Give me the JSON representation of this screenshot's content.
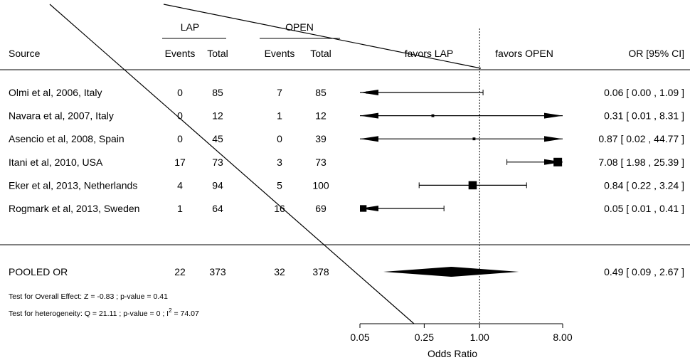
{
  "chart_data": {
    "type": "forest",
    "xlabel": "Odds Ratio",
    "x_scale": "log",
    "xlim": [
      0.05,
      8.0
    ],
    "x_ticks": [
      "0.05",
      "0.25",
      "1.00",
      "8.00"
    ],
    "null_line": 1.0,
    "favors_left": "favors LAP",
    "favors_right": "favors OPEN",
    "headers": {
      "source": "Source",
      "group1": "LAP",
      "group2": "OPEN",
      "events": "Events",
      "total": "Total",
      "or_ci": "OR [95% CI]"
    },
    "studies": [
      {
        "source": "Olmi et al, 2006, Italy",
        "lap_events": "0",
        "lap_total": "85",
        "open_events": "7",
        "open_total": "85",
        "or": 0.06,
        "ci": [
          0.0,
          1.09
        ],
        "or_text": "0.06 [ 0.00 ,  1.09 ]",
        "weight": 0.03,
        "arrow_left": true,
        "arrow_right": false
      },
      {
        "source": "Navara et al, 2007, Italy",
        "lap_events": "0",
        "lap_total": "12",
        "open_events": "1",
        "open_total": "12",
        "or": 0.31,
        "ci": [
          0.01,
          8.31
        ],
        "or_text": "0.31 [ 0.01 ,  8.31 ]",
        "weight": 0.1,
        "arrow_left": true,
        "arrow_right": true
      },
      {
        "source": "Asencio et al, 2008, Spain",
        "lap_events": "0",
        "lap_total": "45",
        "open_events": "0",
        "open_total": "39",
        "or": 0.87,
        "ci": [
          0.02,
          44.77
        ],
        "or_text": "0.87 [ 0.02 , 44.77 ]",
        "weight": 0.1,
        "arrow_left": true,
        "arrow_right": true
      },
      {
        "source": "Itani et al, 2010, USA",
        "lap_events": "17",
        "lap_total": "73",
        "open_events": "3",
        "open_total": "73",
        "or": 7.08,
        "ci": [
          1.98,
          25.39
        ],
        "or_text": "7.08 [ 1.98 , 25.39 ]",
        "weight": 1.0,
        "arrow_left": false,
        "arrow_right": true
      },
      {
        "source": "Eker et al, 2013, Netherlands",
        "lap_events": "4",
        "lap_total": "94",
        "open_events": "5",
        "open_total": "100",
        "or": 0.84,
        "ci": [
          0.22,
          3.24
        ],
        "or_text": "0.84 [ 0.22 ,  3.24 ]",
        "weight": 0.95,
        "arrow_left": false,
        "arrow_right": false
      },
      {
        "source": "Rogmark et al, 2013, Sweden",
        "lap_events": "1",
        "lap_total": "64",
        "open_events": "16",
        "open_total": "69",
        "or": 0.05,
        "ci": [
          0.01,
          0.41
        ],
        "or_text": "0.05 [ 0.01 ,  0.41 ]",
        "weight": 0.7,
        "arrow_left": true,
        "arrow_right": false
      }
    ],
    "pooled": {
      "source": "POOLED OR",
      "lap_events": "22",
      "lap_total": "373",
      "open_events": "32",
      "open_total": "378",
      "or": 0.49,
      "ci": [
        0.09,
        2.67
      ],
      "or_text": "0.49 [ 0.09 ,  2.67 ]"
    },
    "tests": {
      "overall": "Test for Overall Effect:  Z = -0.83  ;  p-value = 0.41",
      "heterogeneity_prefix": "Test for heterogeneity:  Q = 21.11  ;  p-value = 0  ;  I",
      "heterogeneity_sup": "2",
      "heterogeneity_suffix": " = 74.07"
    }
  }
}
